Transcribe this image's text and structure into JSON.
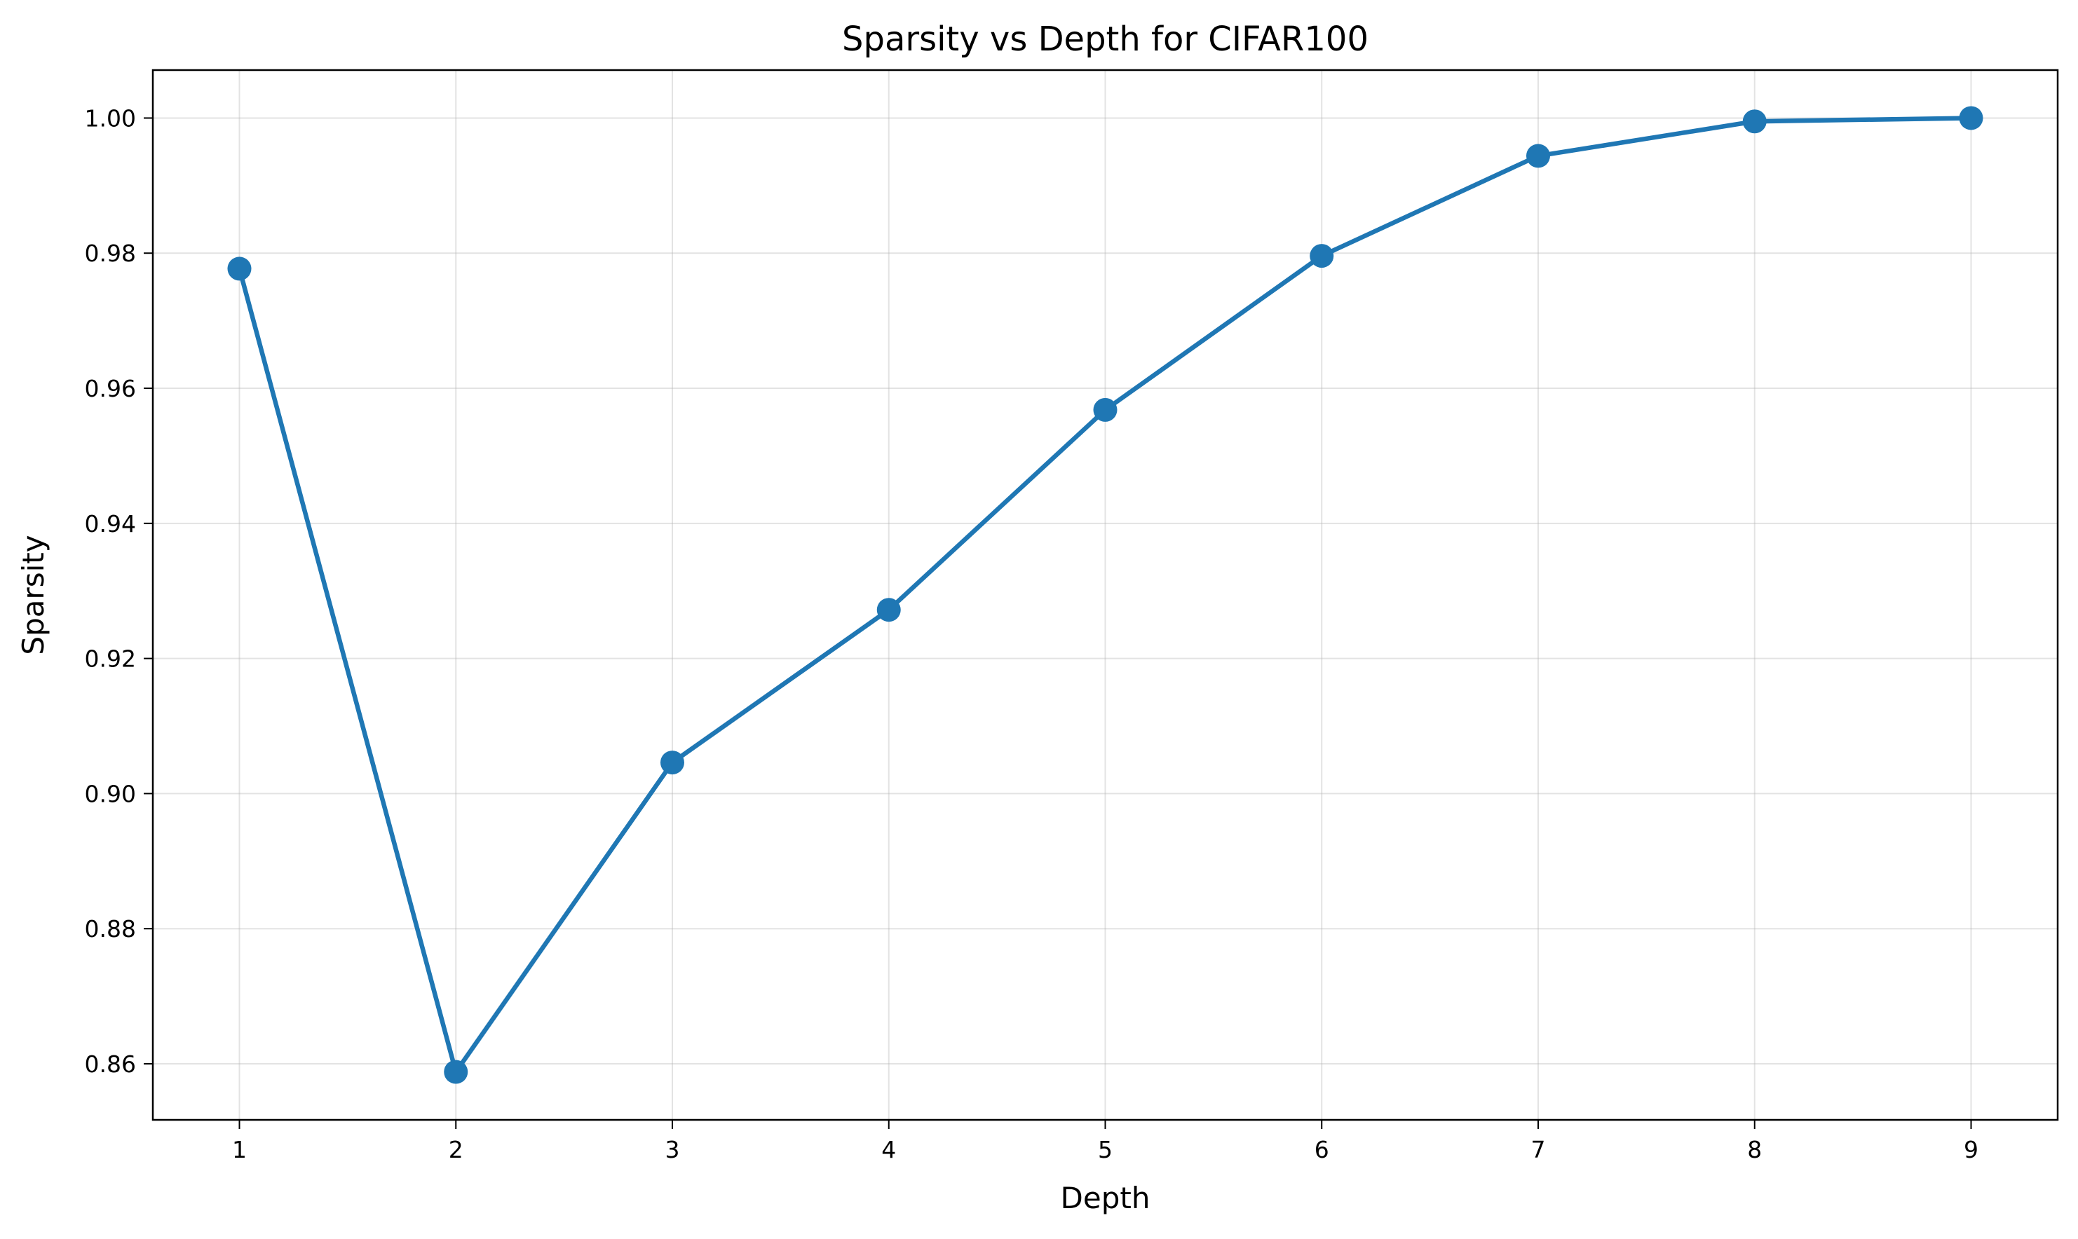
{
  "chart_data": {
    "type": "line",
    "title": "Sparsity vs Depth for CIFAR100",
    "xlabel": "Depth",
    "ylabel": "Sparsity",
    "x": [
      1,
      2,
      3,
      4,
      5,
      6,
      7,
      8,
      9
    ],
    "series": [
      {
        "values": [
          0.9777,
          0.8588,
          0.9046,
          0.9272,
          0.9568,
          0.9796,
          0.9944,
          0.9995,
          1.0
        ]
      }
    ],
    "x_ticks": [
      "1",
      "2",
      "3",
      "4",
      "5",
      "6",
      "7",
      "8",
      "9"
    ],
    "y_ticks": [
      "0.86",
      "0.88",
      "0.90",
      "0.92",
      "0.94",
      "0.96",
      "0.98",
      "1.00"
    ],
    "xlim": [
      0.6,
      9.4
    ],
    "ylim": [
      0.8517,
      1.0071
    ],
    "grid": true,
    "line_color": "#1f77b4",
    "marker": "circle"
  }
}
